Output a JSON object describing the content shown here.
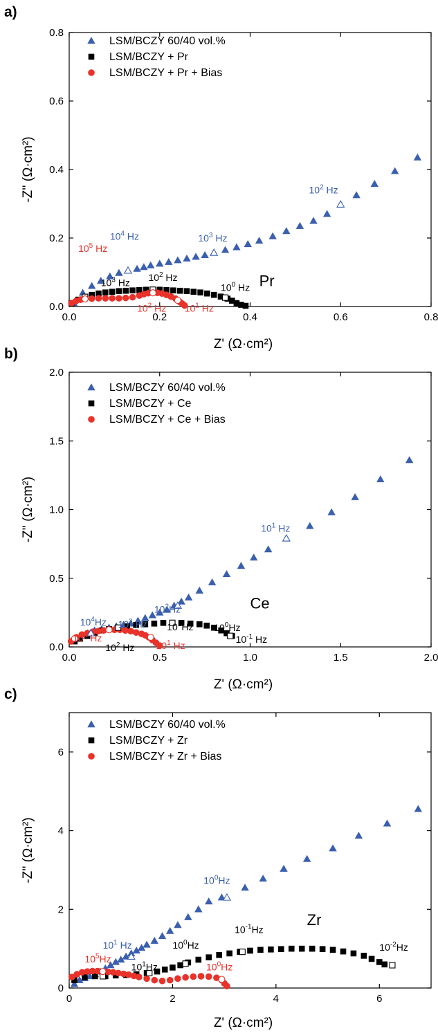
{
  "colors": {
    "blue": "#3a5fae",
    "black": "#000000",
    "red": "#e8322a"
  },
  "chart_data": [
    {
      "type": "scatter",
      "panel": "a)",
      "tag": "Pr",
      "xlabel": "Z' (Ω·cm²)",
      "ylabel": "-Z'' (Ω·cm²)",
      "xlim": [
        0,
        0.8
      ],
      "ylim": [
        0,
        0.8
      ],
      "xticks": [
        "0.0",
        "0.2",
        "0.4",
        "0.6",
        "0.8"
      ],
      "yticks": [
        "0.0",
        "0.2",
        "0.4",
        "0.6",
        "0.8"
      ],
      "legend_position": "top-left",
      "series": [
        {
          "name": "LSM/BCZY 60/40 vol.%",
          "marker": "triangle",
          "color": "#3a5fae",
          "x": [
            0.01,
            0.03,
            0.05,
            0.07,
            0.09,
            0.11,
            0.13,
            0.15,
            0.165,
            0.18,
            0.2,
            0.22,
            0.24,
            0.26,
            0.28,
            0.3,
            0.32,
            0.345,
            0.37,
            0.395,
            0.42,
            0.45,
            0.48,
            0.51,
            0.54,
            0.57,
            0.6,
            0.635,
            0.675,
            0.72,
            0.77
          ],
          "y": [
            0.01,
            0.04,
            0.06,
            0.075,
            0.088,
            0.098,
            0.105,
            0.11,
            0.115,
            0.12,
            0.125,
            0.13,
            0.135,
            0.14,
            0.145,
            0.15,
            0.157,
            0.165,
            0.173,
            0.182,
            0.192,
            0.205,
            0.22,
            0.235,
            0.25,
            0.27,
            0.298,
            0.325,
            0.358,
            0.395,
            0.435
          ]
        },
        {
          "name": "LSM/BCZY + Pr",
          "marker": "square",
          "color": "#000000",
          "x": [
            0.005,
            0.02,
            0.035,
            0.05,
            0.065,
            0.08,
            0.095,
            0.11,
            0.125,
            0.14,
            0.155,
            0.17,
            0.185,
            0.2,
            0.215,
            0.23,
            0.245,
            0.26,
            0.275,
            0.29,
            0.305,
            0.32,
            0.335,
            0.35,
            0.36,
            0.37,
            0.38,
            0.39
          ],
          "y": [
            0.01,
            0.02,
            0.028,
            0.034,
            0.038,
            0.041,
            0.043,
            0.045,
            0.046,
            0.047,
            0.048,
            0.049,
            0.049,
            0.049,
            0.048,
            0.047,
            0.046,
            0.045,
            0.043,
            0.041,
            0.038,
            0.034,
            0.029,
            0.023,
            0.017,
            0.01,
            0.005,
            0.002
          ]
        },
        {
          "name": "LSM/BCZY + Pr + Bias",
          "marker": "circle",
          "color": "#e8322a",
          "x": [
            0.005,
            0.015,
            0.025,
            0.035,
            0.05,
            0.065,
            0.08,
            0.095,
            0.11,
            0.125,
            0.14,
            0.155,
            0.165,
            0.175,
            0.185,
            0.195,
            0.205,
            0.215,
            0.225,
            0.235,
            0.24,
            0.245,
            0.25,
            0.255
          ],
          "y": [
            0.01,
            0.016,
            0.02,
            0.022,
            0.023,
            0.024,
            0.024,
            0.024,
            0.024,
            0.025,
            0.027,
            0.032,
            0.036,
            0.039,
            0.04,
            0.04,
            0.038,
            0.034,
            0.029,
            0.023,
            0.018,
            0.013,
            0.008,
            0.003
          ]
        }
      ],
      "open_markers": [
        {
          "series": 0,
          "x": 0.13,
          "y": 0.105
        },
        {
          "series": 0,
          "x": 0.32,
          "y": 0.157
        },
        {
          "series": 0,
          "x": 0.6,
          "y": 0.298
        },
        {
          "series": 1,
          "x": 0.035,
          "y": 0.028
        },
        {
          "series": 1,
          "x": 0.185,
          "y": 0.049
        },
        {
          "series": 1,
          "x": 0.345,
          "y": 0.026
        },
        {
          "series": 2,
          "x": 0.035,
          "y": 0.022
        },
        {
          "series": 2,
          "x": 0.185,
          "y": 0.04
        },
        {
          "series": 2,
          "x": 0.24,
          "y": 0.018
        }
      ],
      "annotations": [
        {
          "text": "10",
          "sup": "5",
          "tail": " Hz",
          "color": "#e8322a",
          "x": 0.02,
          "y": 0.16
        },
        {
          "text": "10",
          "sup": "4",
          "tail": " Hz",
          "color": "#3a5fae",
          "x": 0.09,
          "y": 0.195
        },
        {
          "text": "10",
          "sup": "3",
          "tail": " Hz",
          "color": "#000000",
          "x": 0.07,
          "y": 0.06
        },
        {
          "text": "10",
          "sup": "2",
          "tail": " Hz",
          "color": "#000000",
          "x": 0.175,
          "y": 0.075
        },
        {
          "text": "10",
          "sup": "2",
          "tail": " Hz",
          "color": "#e8322a",
          "x": 0.15,
          "y": -0.015
        },
        {
          "text": "10",
          "sup": "1",
          "tail": " Hz",
          "color": "#e8322a",
          "x": 0.255,
          "y": -0.015
        },
        {
          "text": "10",
          "sup": "0",
          "tail": " Hz",
          "color": "#000000",
          "x": 0.335,
          "y": 0.045
        },
        {
          "text": "10",
          "sup": "3",
          "tail": " Hz",
          "color": "#3a5fae",
          "x": 0.285,
          "y": 0.19
        },
        {
          "text": "10",
          "sup": "2",
          "tail": " Hz",
          "color": "#3a5fae",
          "x": 0.53,
          "y": 0.33
        }
      ]
    },
    {
      "type": "scatter",
      "panel": "b)",
      "tag": "Ce",
      "xlabel": "Z' (Ω·cm²)",
      "ylabel": "-Z'' (Ω·cm²)",
      "xlim": [
        0,
        2.0
      ],
      "ylim": [
        0,
        2.0
      ],
      "xticks": [
        "0.0",
        "0.5",
        "1.0",
        "1.5",
        "2.0"
      ],
      "yticks": [
        "0.0",
        "0.5",
        "1.0",
        "1.5",
        "2.0"
      ],
      "legend_position": "top-left",
      "series": [
        {
          "name": "LSM/BCZY 60/40 vol.%",
          "marker": "triangle",
          "color": "#3a5fae",
          "x": [
            0.02,
            0.06,
            0.1,
            0.14,
            0.18,
            0.22,
            0.26,
            0.3,
            0.34,
            0.38,
            0.42,
            0.46,
            0.5,
            0.54,
            0.58,
            0.62,
            0.66,
            0.72,
            0.79,
            0.87,
            0.95,
            1.02,
            1.1,
            1.2,
            1.33,
            1.45,
            1.58,
            1.72,
            1.88
          ],
          "y": [
            0.05,
            0.08,
            0.1,
            0.12,
            0.13,
            0.14,
            0.15,
            0.16,
            0.17,
            0.19,
            0.21,
            0.23,
            0.25,
            0.27,
            0.3,
            0.33,
            0.36,
            0.41,
            0.47,
            0.53,
            0.59,
            0.65,
            0.71,
            0.79,
            0.88,
            0.98,
            1.09,
            1.22,
            1.36
          ]
        },
        {
          "name": "LSM/BCZY + Ce",
          "marker": "square",
          "color": "#000000",
          "x": [
            0.03,
            0.06,
            0.1,
            0.14,
            0.18,
            0.22,
            0.27,
            0.32,
            0.37,
            0.42,
            0.47,
            0.52,
            0.57,
            0.62,
            0.67,
            0.72,
            0.76,
            0.8,
            0.84,
            0.87,
            0.9
          ],
          "y": [
            0.04,
            0.06,
            0.08,
            0.1,
            0.12,
            0.13,
            0.14,
            0.15,
            0.16,
            0.165,
            0.17,
            0.175,
            0.175,
            0.175,
            0.17,
            0.165,
            0.155,
            0.14,
            0.12,
            0.1,
            0.08
          ]
        },
        {
          "name": "LSM/BCZY + Ce + Bias",
          "marker": "circle",
          "color": "#e8322a",
          "x": [
            0.01,
            0.04,
            0.07,
            0.1,
            0.13,
            0.16,
            0.19,
            0.22,
            0.25,
            0.28,
            0.31,
            0.34,
            0.37,
            0.4,
            0.42,
            0.44,
            0.46,
            0.48,
            0.5
          ],
          "y": [
            0.04,
            0.07,
            0.09,
            0.1,
            0.11,
            0.115,
            0.12,
            0.125,
            0.125,
            0.125,
            0.12,
            0.115,
            0.105,
            0.095,
            0.085,
            0.07,
            0.05,
            0.03,
            0.01
          ]
        }
      ],
      "open_markers": [
        {
          "series": 0,
          "x": 0.12,
          "y": 0.1
        },
        {
          "series": 0,
          "x": 0.6,
          "y": 0.3
        },
        {
          "series": 0,
          "x": 1.2,
          "y": 0.79
        },
        {
          "series": 1,
          "x": 0.27,
          "y": 0.14
        },
        {
          "series": 1,
          "x": 0.57,
          "y": 0.175
        },
        {
          "series": 1,
          "x": 0.89,
          "y": 0.08
        },
        {
          "series": 2,
          "x": 0.03,
          "y": 0.06
        },
        {
          "series": 2,
          "x": 0.22,
          "y": 0.125
        },
        {
          "series": 2,
          "x": 0.45,
          "y": 0.07
        }
      ],
      "annotations": [
        {
          "text": "10",
          "sup": "4",
          "tail": "Hz",
          "color": "#3a5fae",
          "x": 0.06,
          "y": 0.155
        },
        {
          "text": "10",
          "sup": "2",
          "tail": " Hz",
          "color": "#e8322a",
          "x": 0.02,
          "y": 0.04
        },
        {
          "text": "10",
          "sup": "3",
          "tail": " Hz",
          "color": "#3a5fae",
          "x": 0.27,
          "y": 0.14
        },
        {
          "text": "10",
          "sup": "2",
          "tail": "Hz",
          "color": "#3a5fae",
          "x": 0.47,
          "y": 0.25
        },
        {
          "text": "10",
          "sup": "2",
          "tail": " Hz",
          "color": "#000000",
          "x": 0.2,
          "y": -0.03
        },
        {
          "text": "10",
          "sup": "1",
          "tail": "Hz",
          "color": "#000000",
          "x": 0.54,
          "y": 0.12
        },
        {
          "text": "10",
          "sup": "1",
          "tail": " Hz",
          "color": "#e8322a",
          "x": 0.48,
          "y": -0.015
        },
        {
          "text": "10",
          "sup": "0",
          "tail": "Hz",
          "color": "#000000",
          "x": 0.8,
          "y": 0.115
        },
        {
          "text": "10",
          "sup": "-1",
          "tail": " Hz",
          "color": "#000000",
          "x": 0.92,
          "y": 0.03
        },
        {
          "text": "10",
          "sup": "1",
          "tail": " Hz",
          "color": "#3a5fae",
          "x": 1.06,
          "y": 0.84
        }
      ]
    },
    {
      "type": "scatter",
      "panel": "c)",
      "tag": "Zr",
      "xlabel": "Z' (Ω·cm²)",
      "ylabel": "-Z'' (Ω·cm²)",
      "xlim": [
        0,
        7
      ],
      "ylim": [
        0,
        7
      ],
      "xticks": [
        "0",
        "2",
        "4",
        "6"
      ],
      "yticks": [
        "0",
        "2",
        "4",
        "6"
      ],
      "legend_position": "top-left",
      "series": [
        {
          "name": "LSM/BCZY 60/40 vol.%",
          "marker": "triangle",
          "color": "#3a5fae",
          "x": [
            0.1,
            0.2,
            0.3,
            0.4,
            0.5,
            0.6,
            0.7,
            0.8,
            0.9,
            1.0,
            1.1,
            1.2,
            1.3,
            1.4,
            1.5,
            1.65,
            1.8,
            1.95,
            2.1,
            2.3,
            2.5,
            2.7,
            2.95,
            3.4,
            3.75,
            4.15,
            4.6,
            5.1,
            5.6,
            6.15,
            6.75
          ],
          "y": [
            0.1,
            0.2,
            0.25,
            0.3,
            0.35,
            0.42,
            0.5,
            0.58,
            0.66,
            0.72,
            0.8,
            0.88,
            0.95,
            1.02,
            1.1,
            1.2,
            1.32,
            1.45,
            1.6,
            1.8,
            2.0,
            2.2,
            2.3,
            2.55,
            2.78,
            3.03,
            3.28,
            3.55,
            3.87,
            4.18,
            4.55
          ]
        },
        {
          "name": "LSM/BCZY + Zr",
          "marker": "square",
          "color": "#000000",
          "x": [
            0.1,
            0.3,
            0.5,
            0.7,
            0.9,
            1.1,
            1.3,
            1.5,
            1.7,
            1.85,
            2.0,
            2.15,
            2.3,
            2.5,
            2.7,
            2.9,
            3.1,
            3.3,
            3.5,
            3.7,
            3.9,
            4.1,
            4.3,
            4.5,
            4.7,
            4.9,
            5.1,
            5.3,
            5.5,
            5.7,
            5.85,
            6.0,
            6.1
          ],
          "y": [
            0.2,
            0.28,
            0.3,
            0.3,
            0.32,
            0.33,
            0.35,
            0.38,
            0.42,
            0.47,
            0.52,
            0.58,
            0.65,
            0.72,
            0.78,
            0.84,
            0.88,
            0.92,
            0.95,
            0.97,
            0.98,
            0.99,
            1.0,
            1.0,
            1.0,
            0.99,
            0.97,
            0.93,
            0.88,
            0.82,
            0.74,
            0.66,
            0.6
          ]
        },
        {
          "name": "LSM/BCZY + Zr + Bias",
          "marker": "circle",
          "color": "#e8322a",
          "x": [
            0.05,
            0.15,
            0.25,
            0.35,
            0.45,
            0.55,
            0.65,
            0.75,
            0.85,
            0.95,
            1.05,
            1.15,
            1.25,
            1.35,
            1.5,
            1.65,
            1.8,
            1.95,
            2.1,
            2.25,
            2.4,
            2.55,
            2.7,
            2.85,
            2.95,
            3.0,
            3.05
          ],
          "y": [
            0.28,
            0.35,
            0.4,
            0.42,
            0.43,
            0.43,
            0.42,
            0.41,
            0.4,
            0.38,
            0.36,
            0.34,
            0.31,
            0.28,
            0.24,
            0.2,
            0.18,
            0.2,
            0.24,
            0.27,
            0.29,
            0.3,
            0.29,
            0.26,
            0.2,
            0.12,
            0.05
          ]
        }
      ],
      "open_markers": [
        {
          "series": 0,
          "x": 1.2,
          "y": 0.8
        },
        {
          "series": 0,
          "x": 3.05,
          "y": 2.3
        },
        {
          "series": 1,
          "x": 0.65,
          "y": 0.3
        },
        {
          "series": 1,
          "x": 1.55,
          "y": 0.38
        },
        {
          "series": 1,
          "x": 2.25,
          "y": 0.62
        },
        {
          "series": 1,
          "x": 3.35,
          "y": 0.92
        },
        {
          "series": 1,
          "x": 6.25,
          "y": 0.58
        },
        {
          "series": 2,
          "x": 0.65,
          "y": 0.42
        },
        {
          "series": 2,
          "x": 2.95,
          "y": 0.22
        }
      ],
      "annotations": [
        {
          "text": "10",
          "sup": "1",
          "tail": " Hz",
          "color": "#3a5fae",
          "x": 0.65,
          "y": 1.0
        },
        {
          "text": "10",
          "sup": "5",
          "tail": "Hz",
          "color": "#e8322a",
          "x": 0.3,
          "y": 0.65
        },
        {
          "text": "10",
          "sup": "1",
          "tail": "Hz",
          "color": "#000000",
          "x": 1.2,
          "y": 0.45
        },
        {
          "text": "10",
          "sup": "0",
          "tail": "Hz",
          "color": "#000000",
          "x": 2.0,
          "y": 1.0
        },
        {
          "text": "10",
          "sup": "0",
          "tail": "Hz",
          "color": "#e8322a",
          "x": 2.65,
          "y": 0.45
        },
        {
          "text": "10",
          "sup": "-1",
          "tail": "Hz",
          "color": "#000000",
          "x": 3.2,
          "y": 1.4
        },
        {
          "text": "10",
          "sup": "0",
          "tail": "Hz",
          "color": "#3a5fae",
          "x": 2.6,
          "y": 2.65
        },
        {
          "text": "10",
          "sup": "-2",
          "tail": "Hz",
          "color": "#000000",
          "x": 6.0,
          "y": 0.95
        }
      ]
    }
  ]
}
